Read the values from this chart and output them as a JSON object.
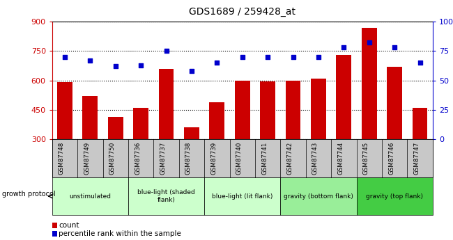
{
  "title": "GDS1689 / 259428_at",
  "samples": [
    "GSM87748",
    "GSM87749",
    "GSM87750",
    "GSM87736",
    "GSM87737",
    "GSM87738",
    "GSM87739",
    "GSM87740",
    "GSM87741",
    "GSM87742",
    "GSM87743",
    "GSM87744",
    "GSM87745",
    "GSM87746",
    "GSM87747"
  ],
  "counts": [
    590,
    520,
    415,
    460,
    660,
    360,
    490,
    600,
    595,
    600,
    610,
    730,
    870,
    670,
    460
  ],
  "percentiles": [
    70,
    67,
    62,
    63,
    75,
    58,
    65,
    70,
    70,
    70,
    70,
    78,
    82,
    78,
    65
  ],
  "bar_color": "#cc0000",
  "dot_color": "#0000cc",
  "ylim_left": [
    300,
    900
  ],
  "ylim_right": [
    0,
    100
  ],
  "yticks_left": [
    300,
    450,
    600,
    750,
    900
  ],
  "yticks_right": [
    0,
    25,
    50,
    75,
    100
  ],
  "groups": [
    {
      "label": "unstimulated",
      "start": 0,
      "end": 2,
      "color": "#ccffcc"
    },
    {
      "label": "blue-light (shaded\nflank)",
      "start": 3,
      "end": 5,
      "color": "#ccffcc"
    },
    {
      "label": "blue-light (lit flank)",
      "start": 6,
      "end": 8,
      "color": "#ccffcc"
    },
    {
      "label": "gravity (bottom flank)",
      "start": 9,
      "end": 11,
      "color": "#99ee99"
    },
    {
      "label": "gravity (top flank)",
      "start": 12,
      "end": 14,
      "color": "#44cc44"
    }
  ],
  "xlabel_color": "#cc0000",
  "ylabel_right_color": "#0000cc",
  "legend_count_color": "#cc0000",
  "legend_pct_color": "#0000cc",
  "xtick_bg_color": "#c8c8c8",
  "plot_bg_color": "#ffffff",
  "grid_color": "black"
}
